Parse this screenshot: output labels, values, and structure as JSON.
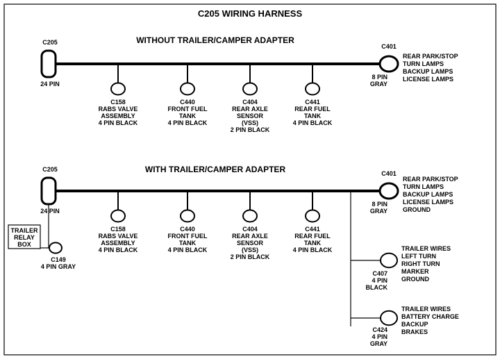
{
  "title": "C205 WIRING HARNESS",
  "sections": [
    {
      "subtitle": "WITHOUT  TRAILER/CAMPER  ADAPTER",
      "left_conn": {
        "label_top": "C205",
        "label_bottom": "24 PIN"
      },
      "right_conn": {
        "label_top": "C401",
        "label_below": [
          "8 PIN",
          "GRAY"
        ],
        "side_text": [
          "REAR PARK/STOP",
          "TURN LAMPS",
          "BACKUP LAMPS",
          "LICENSE LAMPS"
        ]
      },
      "drops": [
        {
          "id": "C158",
          "lines": [
            "C158",
            "RABS VALVE",
            "ASSEMBLY",
            "4 PIN BLACK"
          ]
        },
        {
          "id": "C440",
          "lines": [
            "C440",
            "FRONT FUEL",
            "TANK",
            "4 PIN BLACK"
          ]
        },
        {
          "id": "C404",
          "lines": [
            "C404",
            "REAR AXLE",
            "SENSOR",
            "(VSS)",
            "2 PIN BLACK"
          ]
        },
        {
          "id": "C441",
          "lines": [
            "C441",
            "REAR FUEL",
            "TANK",
            "4 PIN BLACK"
          ]
        }
      ]
    },
    {
      "subtitle": "WITH TRAILER/CAMPER  ADAPTER",
      "left_conn": {
        "label_top": "C205",
        "label_bottom": "24 PIN"
      },
      "right_conn": {
        "label_top": "C401",
        "label_below": [
          "8 PIN",
          "GRAY"
        ],
        "side_text": [
          "REAR PARK/STOP",
          "TURN LAMPS",
          "BACKUP LAMPS",
          "LICENSE LAMPS",
          "GROUND"
        ]
      },
      "drops": [
        {
          "id": "C158",
          "lines": [
            "C158",
            "RABS VALVE",
            "ASSEMBLY",
            "4 PIN BLACK"
          ]
        },
        {
          "id": "C440",
          "lines": [
            "C440",
            "FRONT FUEL",
            "TANK",
            "4 PIN BLACK"
          ]
        },
        {
          "id": "C404",
          "lines": [
            "C404",
            "REAR AXLE",
            "SENSOR",
            "(VSS)",
            "2 PIN BLACK"
          ]
        },
        {
          "id": "C441",
          "lines": [
            "C441",
            "REAR FUEL",
            "TANK",
            "4 PIN BLACK"
          ]
        }
      ],
      "extra_left": {
        "box": [
          "TRAILER",
          "RELAY",
          "BOX"
        ],
        "conn": [
          "C149",
          "4 PIN GRAY"
        ]
      },
      "extra_right": [
        {
          "label_below": [
            "C407",
            "4 PIN",
            "BLACK"
          ],
          "side_text": [
            "TRAILER WIRES",
            "LEFT TURN",
            "RIGHT TURN",
            "MARKER",
            "GROUND"
          ]
        },
        {
          "label_below": [
            "C424",
            "4 PIN",
            "GRAY"
          ],
          "side_text": [
            "TRAILER  WIRES",
            "BATTERY CHARGE",
            "BACKUP",
            "BRAKES"
          ]
        }
      ]
    }
  ],
  "style": {
    "frame_color": "#000000",
    "line_width_main": 4,
    "line_width_thin": 1.2,
    "conn_fill": "#ffffff"
  }
}
